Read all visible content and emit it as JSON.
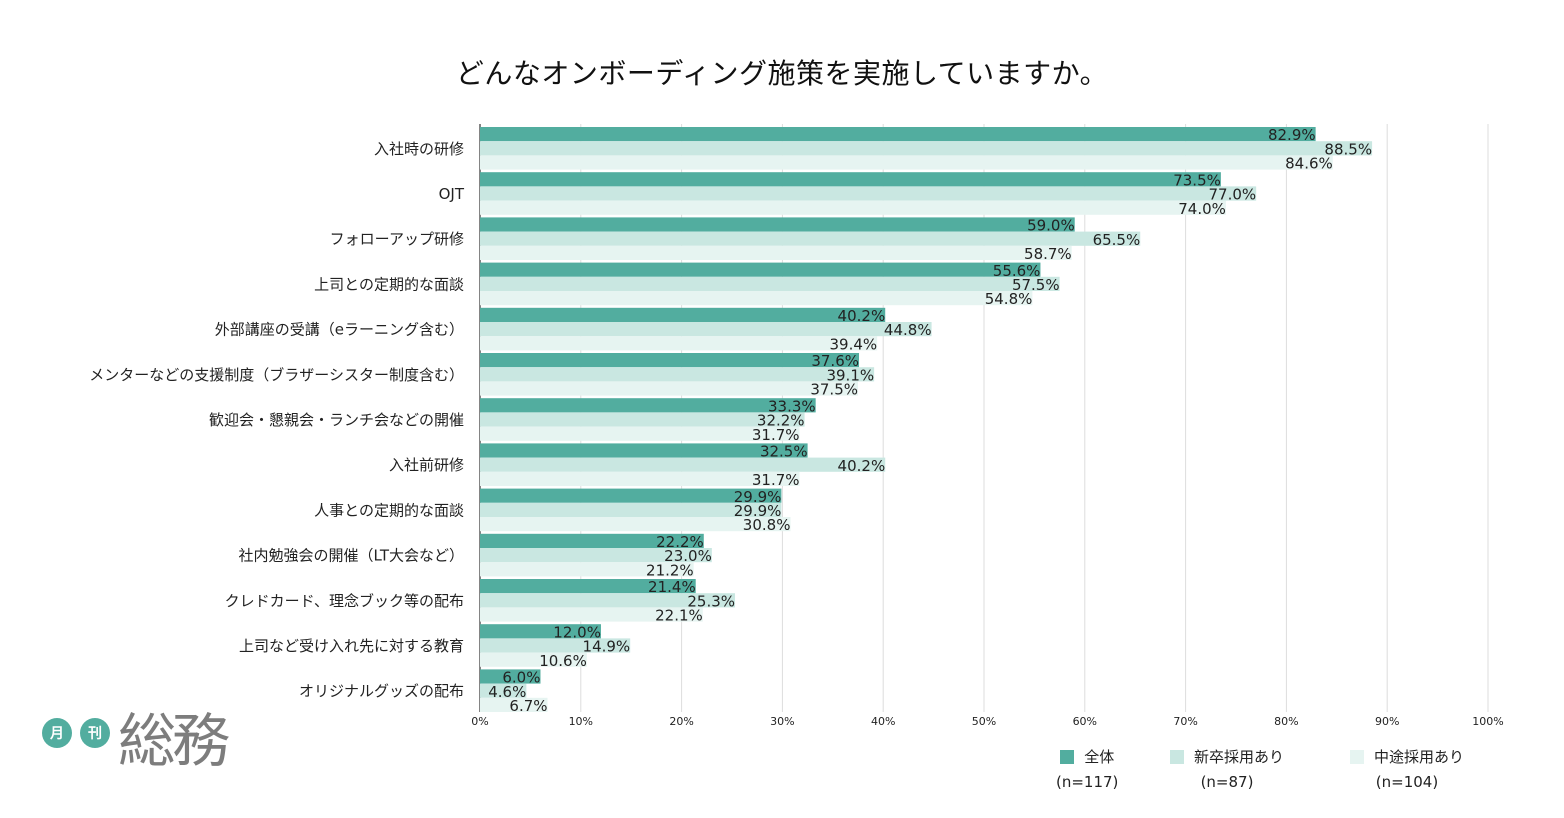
{
  "chart_data": {
    "type": "bar",
    "orientation": "horizontal",
    "title": "どんなオンボーディング施策を実施していますか。",
    "xlim": [
      0,
      100
    ],
    "x_ticks": [
      "0%",
      "10%",
      "20%",
      "30%",
      "40%",
      "50%",
      "60%",
      "70%",
      "80%",
      "90%",
      "100%"
    ],
    "categories": [
      "入社時の研修",
      "OJT",
      "フォローアップ研修",
      "上司との定期的な面談",
      "外部講座の受講（eラーニング含む）",
      "メンターなどの支援制度（ブラザーシスター制度含む）",
      "歓迎会・懇親会・ランチ会などの開催",
      "入社前研修",
      "人事との定期的な面談",
      "社内勉強会の開催（LT大会など）",
      "クレドカード、理念ブック等の配布",
      "上司など受け入れ先に対する教育",
      "オリジナルグッズの配布"
    ],
    "series": [
      {
        "name": "全体",
        "n": "(n=117)",
        "color": "#52ad9f",
        "values": [
          82.9,
          73.5,
          59.0,
          55.6,
          40.2,
          37.6,
          33.3,
          32.5,
          29.9,
          22.2,
          21.4,
          12.0,
          6.0
        ]
      },
      {
        "name": "新卒採用あり",
        "n": "(n=87)",
        "color": "#c9e7e1",
        "values": [
          88.5,
          77.0,
          65.5,
          57.5,
          44.8,
          39.1,
          32.2,
          40.2,
          29.9,
          23.0,
          25.3,
          14.9,
          4.6
        ]
      },
      {
        "name": "中途採用あり",
        "n": "(n=104)",
        "color": "#e6f4f1",
        "values": [
          84.6,
          74.0,
          58.7,
          54.8,
          39.4,
          37.5,
          31.7,
          31.7,
          30.8,
          21.2,
          22.1,
          10.6,
          6.7
        ]
      }
    ],
    "grid": true,
    "legend_position": "bottom-right"
  },
  "logo": {
    "badge_1": "月",
    "badge_2": "刊",
    "text": "総務"
  }
}
